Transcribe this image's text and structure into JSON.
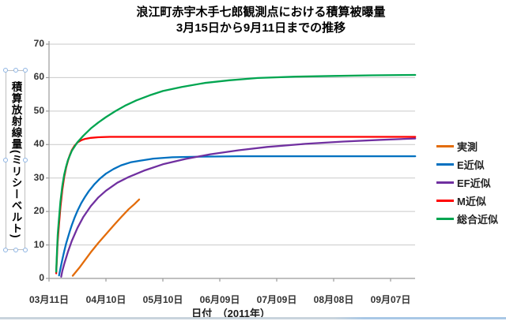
{
  "title": {
    "line1": "浪江町赤宇木手七郎観測点における積算被曝量",
    "line2": "3月15日から9月11日までの推移"
  },
  "y_axis": {
    "title": "積算放射線量(ミリシーベルト)",
    "tick_labels": [
      "0",
      "10",
      "20",
      "30",
      "40",
      "50",
      "60",
      "70"
    ],
    "min": 0,
    "max": 70
  },
  "x_axis": {
    "title": "日付　（2011年）",
    "tick_labels": [
      "03月11日",
      "04月10日",
      "05月10日",
      "06月09日",
      "07月09日",
      "08月08日",
      "09月07日"
    ],
    "tick_interval_days": 30
  },
  "legend": {
    "position": "right",
    "items": [
      {
        "label": "実測",
        "color": "#E36C0A"
      },
      {
        "label": "E近似",
        "color": "#0070C0"
      },
      {
        "label": "EF近似",
        "color": "#7030A0"
      },
      {
        "label": "M近似",
        "color": "#FF0000"
      },
      {
        "label": "総合近似",
        "color": "#00A550"
      }
    ]
  },
  "colors": {
    "gridline": "#C9C9C9",
    "axis": "#9B9B9B",
    "tick_text": "#333333",
    "selection_handle": "#8EB4E3"
  },
  "chart_data": {
    "type": "line",
    "title": "浪江町赤宇木手七郎観測点における積算被曝量 3月15日から9月11日までの推移",
    "xlabel": "日付（2011年）",
    "ylabel": "積算放射線量(ミリシーベルト)",
    "x_unit": "days since 2011-03-11",
    "x_tick_days": [
      0,
      30,
      60,
      90,
      120,
      150,
      180
    ],
    "xlim_days": [
      0,
      193
    ],
    "ylim": [
      0,
      70
    ],
    "grid": "horizontal",
    "legend_position": "right",
    "series": [
      {
        "name": "実測",
        "color": "#E36C0A",
        "points": [
          [
            12.5,
            0.8
          ],
          [
            16,
            3.2
          ],
          [
            19,
            5.5
          ],
          [
            22,
            7.8
          ],
          [
            26,
            10.6
          ],
          [
            30,
            13.2
          ],
          [
            34,
            15.8
          ],
          [
            38,
            18.3
          ],
          [
            42,
            20.7
          ],
          [
            45,
            22.2
          ],
          [
            47.5,
            23.6
          ]
        ]
      },
      {
        "name": "E近似",
        "color": "#0070C0",
        "points": [
          [
            5.3,
            0.9
          ],
          [
            6,
            2.9
          ],
          [
            7,
            5.6
          ],
          [
            8,
            8.1
          ],
          [
            9,
            10.4
          ],
          [
            10,
            12.3
          ],
          [
            11,
            14.2
          ],
          [
            12,
            15.9
          ],
          [
            13.5,
            18.2
          ],
          [
            15,
            20.2
          ],
          [
            17,
            22.5
          ],
          [
            19,
            24.4
          ],
          [
            21,
            26.1
          ],
          [
            24,
            28.2
          ],
          [
            27,
            29.9
          ],
          [
            30,
            31.3
          ],
          [
            34,
            32.7
          ],
          [
            38,
            33.8
          ],
          [
            43,
            34.7
          ],
          [
            48,
            35.2
          ],
          [
            55,
            35.8
          ],
          [
            65,
            36.2
          ],
          [
            80,
            36.4
          ],
          [
            100,
            36.5
          ],
          [
            130,
            36.5
          ],
          [
            160,
            36.5
          ],
          [
            193,
            36.5
          ]
        ]
      },
      {
        "name": "EF近似",
        "color": "#7030A0",
        "points": [
          [
            6.4,
            0.5
          ],
          [
            7,
            2.2
          ],
          [
            8,
            4.3
          ],
          [
            10,
            8.0
          ],
          [
            12,
            11.2
          ],
          [
            15,
            15.1
          ],
          [
            18,
            18.3
          ],
          [
            22,
            21.6
          ],
          [
            26,
            24.2
          ],
          [
            30,
            26.2
          ],
          [
            36,
            28.6
          ],
          [
            42,
            30.3
          ],
          [
            50,
            32.2
          ],
          [
            60,
            34.1
          ],
          [
            72,
            35.7
          ],
          [
            85,
            37.1
          ],
          [
            100,
            38.3
          ],
          [
            115,
            39.3
          ],
          [
            135,
            40.2
          ],
          [
            155,
            40.9
          ],
          [
            175,
            41.4
          ],
          [
            193,
            41.8
          ]
        ]
      },
      {
        "name": "M近似",
        "color": "#FF0000",
        "points": [
          [
            3.8,
            1.5
          ],
          [
            4.5,
            10.5
          ],
          [
            5,
            14.3
          ],
          [
            6,
            21.2
          ],
          [
            7,
            26.4
          ],
          [
            8,
            30.3
          ],
          [
            9,
            33.1
          ],
          [
            10,
            35.2
          ],
          [
            11,
            36.9
          ],
          [
            12,
            38.3
          ],
          [
            13.5,
            39.7
          ],
          [
            15,
            40.6
          ],
          [
            17,
            41.3
          ],
          [
            19,
            41.7
          ],
          [
            22,
            42.0
          ],
          [
            26,
            42.2
          ],
          [
            32,
            42.3
          ],
          [
            60,
            42.3
          ],
          [
            120,
            42.3
          ],
          [
            193,
            42.3
          ]
        ]
      },
      {
        "name": "総合近似",
        "color": "#00A550",
        "points": [
          [
            3.8,
            2.0
          ],
          [
            4.2,
            8.0
          ],
          [
            4.6,
            13.0
          ],
          [
            5,
            16.1
          ],
          [
            5.5,
            19.5
          ],
          [
            6,
            22.9
          ],
          [
            7,
            27.6
          ],
          [
            8,
            31.0
          ],
          [
            9,
            33.4
          ],
          [
            10,
            35.4
          ],
          [
            12,
            38.1
          ],
          [
            15,
            40.7
          ],
          [
            18,
            42.6
          ],
          [
            22,
            44.8
          ],
          [
            26,
            46.6
          ],
          [
            30,
            48.2
          ],
          [
            35,
            50.0
          ],
          [
            40,
            51.6
          ],
          [
            46,
            53.2
          ],
          [
            53,
            54.7
          ],
          [
            60,
            56.0
          ],
          [
            70,
            57.2
          ],
          [
            82,
            58.4
          ],
          [
            95,
            59.2
          ],
          [
            110,
            59.9
          ],
          [
            130,
            60.3
          ],
          [
            150,
            60.5
          ],
          [
            170,
            60.7
          ],
          [
            193,
            60.8
          ]
        ]
      }
    ]
  }
}
